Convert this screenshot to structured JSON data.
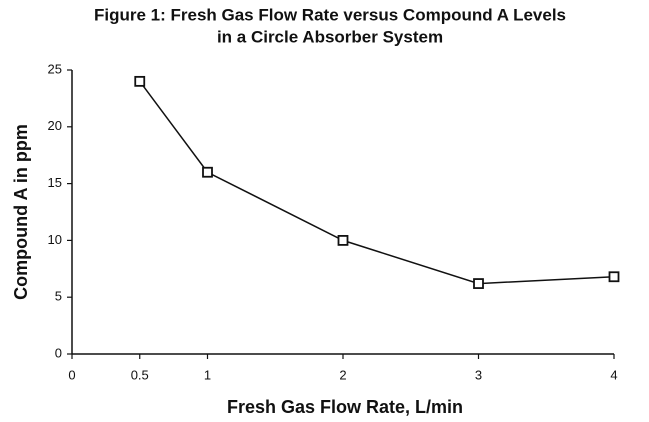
{
  "chart_data": {
    "type": "line",
    "title": [
      "Figure 1: Fresh Gas Flow Rate versus Compound A Levels",
      "in a Circle Absorber System"
    ],
    "x_label": "Fresh Gas Flow Rate, L/min",
    "y_label": "Compound A in ppm",
    "x": [
      0.5,
      1,
      2,
      3,
      4
    ],
    "series": [
      {
        "name": "Compound A",
        "color": "#111111",
        "values": [
          24,
          16,
          10,
          6.2,
          6.8
        ]
      }
    ],
    "xlim": [
      0,
      4
    ],
    "xticks": [
      0,
      0.5,
      1,
      2,
      3,
      4
    ],
    "ylim": [
      0,
      25
    ],
    "yticks": [
      0,
      5,
      10,
      15,
      20,
      25
    ],
    "grid": false,
    "marker": "square"
  }
}
